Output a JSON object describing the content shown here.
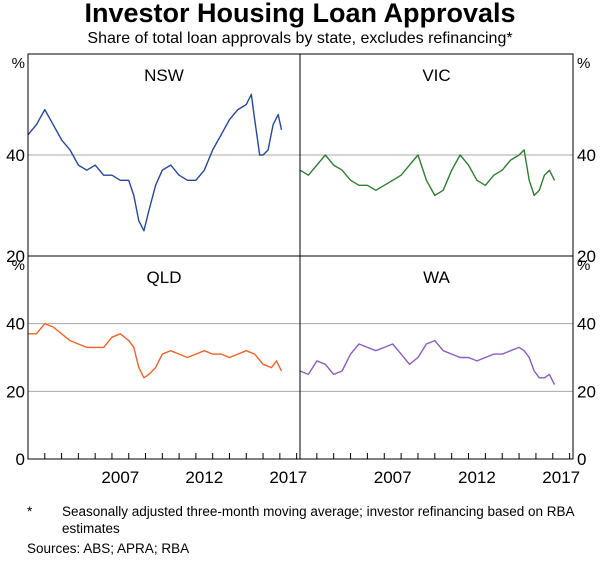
{
  "title": "Investor Housing Loan Approvals",
  "subtitle": "Share of total loan approvals by state, excludes refinancing*",
  "footnote": {
    "marker": "*",
    "text": "Seasonally adjusted three-month moving average; investor refinancing based on RBA estimates"
  },
  "sources": "Sources: ABS; APRA; RBA",
  "colors": {
    "NSW": "#26479b",
    "VIC": "#2e7d32",
    "QLD": "#f0622a",
    "WA": "#8a5cc0",
    "grid": "#aaaaaa"
  },
  "chart_data": {
    "type": "line",
    "layout": "2x2 small multiples",
    "unit": "%",
    "x_ticks": [
      "2007",
      "2012",
      "2017"
    ],
    "xlim": [
      2002.0,
      2018.2
    ],
    "panels": [
      {
        "name": "NSW",
        "ylim": [
          20,
          60
        ],
        "y_ticks": [
          "40",
          "20"
        ],
        "x": [
          2002.0,
          2002.5,
          2003.0,
          2003.5,
          2004.0,
          2004.5,
          2005.0,
          2005.5,
          2006.0,
          2006.5,
          2007.0,
          2007.5,
          2008.0,
          2008.3,
          2008.6,
          2008.9,
          2009.2,
          2009.6,
          2010.0,
          2010.5,
          2011.0,
          2011.5,
          2012.0,
          2012.5,
          2013.0,
          2013.5,
          2014.0,
          2014.5,
          2015.0,
          2015.3,
          2015.5,
          2015.8,
          2016.0,
          2016.3,
          2016.6,
          2016.9,
          2017.1
        ],
        "y": [
          44,
          46,
          49,
          46,
          43,
          41,
          38,
          37,
          38,
          36,
          36,
          35,
          35,
          32,
          27,
          25,
          29,
          34,
          37,
          38,
          36,
          35,
          35,
          37,
          41,
          44,
          47,
          49,
          50,
          52,
          47,
          40,
          40,
          41,
          46,
          48,
          45
        ]
      },
      {
        "name": "VIC",
        "ylim": [
          20,
          60
        ],
        "y_ticks": [
          "40",
          "20"
        ],
        "x": [
          2002.0,
          2002.5,
          2003.0,
          2003.5,
          2004.0,
          2004.5,
          2005.0,
          2005.5,
          2006.0,
          2006.5,
          2007.0,
          2007.5,
          2008.0,
          2008.5,
          2009.0,
          2009.5,
          2010.0,
          2010.5,
          2011.0,
          2011.5,
          2012.0,
          2012.5,
          2013.0,
          2013.5,
          2014.0,
          2014.5,
          2015.0,
          2015.3,
          2015.6,
          2015.9,
          2016.2,
          2016.5,
          2016.8,
          2017.1
        ],
        "y": [
          37,
          36,
          38,
          40,
          38,
          37,
          35,
          34,
          34,
          33,
          34,
          35,
          36,
          38,
          40,
          35,
          32,
          33,
          37,
          40,
          38,
          35,
          34,
          36,
          37,
          39,
          40,
          41,
          35,
          32,
          33,
          36,
          37,
          35
        ]
      },
      {
        "name": "QLD",
        "ylim": [
          0,
          60
        ],
        "y_ticks": [
          "40",
          "20"
        ],
        "x": [
          2002.0,
          2002.5,
          2003.0,
          2003.5,
          2004.0,
          2004.5,
          2005.0,
          2005.5,
          2006.0,
          2006.5,
          2007.0,
          2007.5,
          2008.0,
          2008.3,
          2008.6,
          2008.9,
          2009.2,
          2009.6,
          2010.0,
          2010.5,
          2011.0,
          2011.5,
          2012.0,
          2012.5,
          2013.0,
          2013.5,
          2014.0,
          2014.5,
          2015.0,
          2015.5,
          2016.0,
          2016.5,
          2016.8,
          2017.1
        ],
        "y": [
          37,
          37,
          40,
          39,
          37,
          35,
          34,
          33,
          33,
          33,
          36,
          37,
          35,
          33,
          27,
          24,
          25,
          27,
          31,
          32,
          31,
          30,
          31,
          32,
          31,
          31,
          30,
          31,
          32,
          31,
          28,
          27,
          29,
          26
        ]
      },
      {
        "name": "WA",
        "ylim": [
          0,
          60
        ],
        "y_ticks": [
          "40",
          "20"
        ],
        "x": [
          2002.0,
          2002.5,
          2003.0,
          2003.5,
          2004.0,
          2004.5,
          2005.0,
          2005.5,
          2006.0,
          2006.5,
          2007.0,
          2007.5,
          2008.0,
          2008.5,
          2009.0,
          2009.5,
          2010.0,
          2010.5,
          2011.0,
          2011.5,
          2012.0,
          2012.5,
          2013.0,
          2013.5,
          2014.0,
          2014.5,
          2015.0,
          2015.3,
          2015.6,
          2015.9,
          2016.2,
          2016.5,
          2016.8,
          2017.1
        ],
        "y": [
          26,
          25,
          29,
          28,
          25,
          26,
          31,
          34,
          33,
          32,
          33,
          34,
          31,
          28,
          30,
          34,
          35,
          32,
          31,
          30,
          30,
          29,
          30,
          31,
          31,
          32,
          33,
          32,
          30,
          26,
          24,
          24,
          25,
          22
        ]
      }
    ]
  }
}
